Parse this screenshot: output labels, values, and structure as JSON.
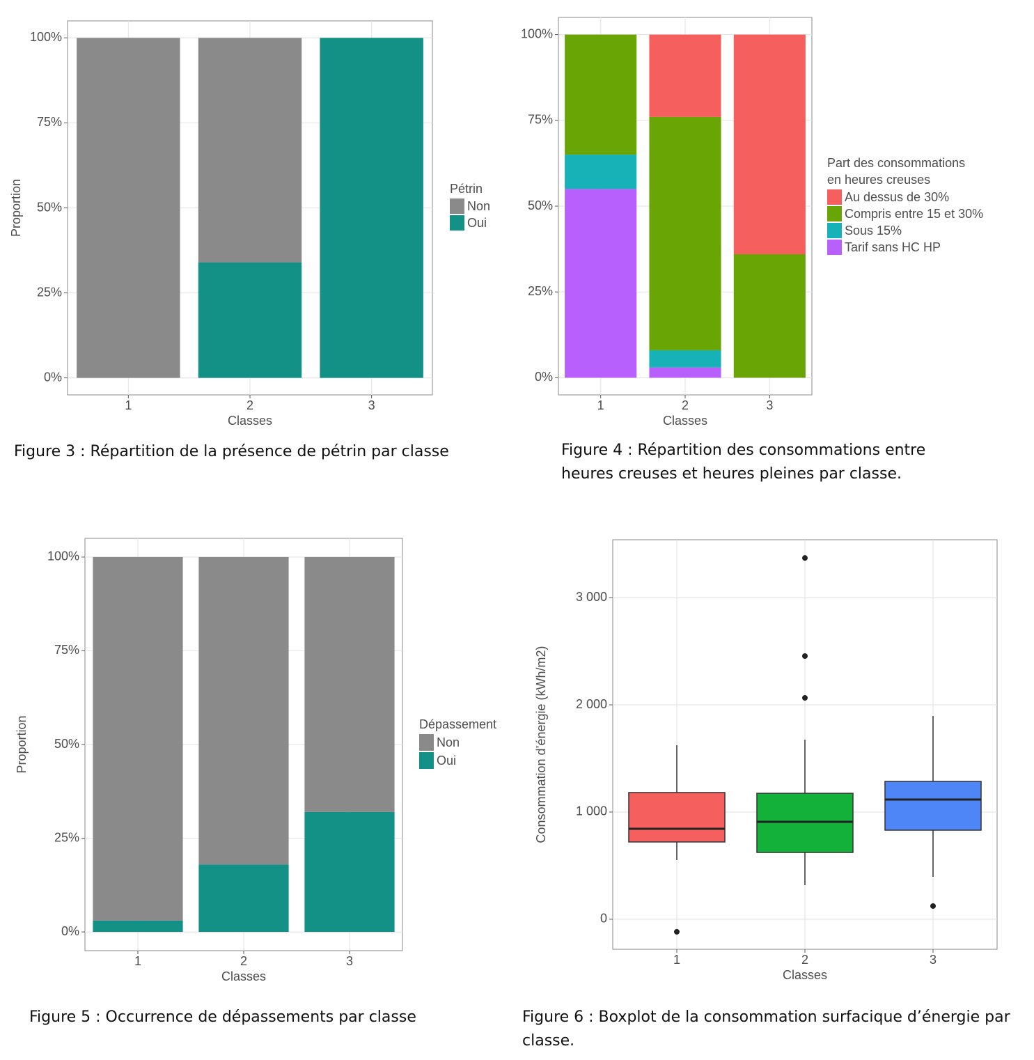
{
  "chart_data": [
    {
      "type": "stacked_bar",
      "caption": "Figure 3 : Répartition de la présence de pétrin par classe",
      "xlabel": "Classes",
      "ylabel": "Proportion",
      "legend_title": "Pétrin",
      "categories": [
        "1",
        "2",
        "3"
      ],
      "series": [
        {
          "name": "Non",
          "color": "#8a8a8a",
          "values": [
            100,
            66,
            0
          ]
        },
        {
          "name": "Oui",
          "color": "#139187",
          "values": [
            0,
            34,
            100
          ]
        }
      ],
      "ylim": [
        -5,
        105
      ],
      "yticks": [
        {
          "value": 0,
          "label": "0%"
        },
        {
          "value": 25,
          "label": "25%"
        },
        {
          "value": 50,
          "label": "50%"
        },
        {
          "value": 75,
          "label": "75%"
        },
        {
          "value": 100,
          "label": "100%"
        }
      ],
      "grid": true
    },
    {
      "type": "stacked_bar",
      "caption": "Figure 4 : Répartition des consommations entre heures creuses et heures pleines par classe.",
      "xlabel": "Classes",
      "legend_title": [
        "Part des consommations",
        " en heures creuses"
      ],
      "categories": [
        "1",
        "2",
        "3"
      ],
      "series": [
        {
          "name": "Au dessus de 30%",
          "color": "#f5605e",
          "values": [
            0,
            24,
            64
          ]
        },
        {
          "name": "Compris entre 15 et 30%",
          "color": "#69a504",
          "values": [
            35,
            68,
            36
          ]
        },
        {
          "name": "Sous 15%",
          "color": "#16b2b8",
          "values": [
            10,
            5,
            0
          ]
        },
        {
          "name": "Tarif sans HC HP",
          "color": "#b760fd",
          "values": [
            55,
            3,
            0
          ]
        }
      ],
      "ylim": [
        -5,
        105
      ],
      "yticks": [
        {
          "value": 0,
          "label": "0%"
        },
        {
          "value": 25,
          "label": "25%"
        },
        {
          "value": 50,
          "label": "50%"
        },
        {
          "value": 75,
          "label": "75%"
        },
        {
          "value": 100,
          "label": "100%"
        }
      ],
      "grid": true
    },
    {
      "type": "stacked_bar",
      "caption": "Figure 5 : Occurrence de dépassements par classe",
      "xlabel": "Classes",
      "ylabel": "Proportion",
      "legend_title": "Dépassement",
      "categories": [
        "1",
        "2",
        "3"
      ],
      "series": [
        {
          "name": "Non",
          "color": "#8a8a8a",
          "values": [
            97,
            82,
            68
          ]
        },
        {
          "name": "Oui",
          "color": "#139187",
          "values": [
            3,
            18,
            32
          ]
        }
      ],
      "ylim": [
        -5,
        105
      ],
      "yticks": [
        {
          "value": 0,
          "label": "0%"
        },
        {
          "value": 25,
          "label": "25%"
        },
        {
          "value": 50,
          "label": "50%"
        },
        {
          "value": 75,
          "label": "75%"
        },
        {
          "value": 100,
          "label": "100%"
        }
      ],
      "grid": true
    },
    {
      "type": "box",
      "caption": "Figure 6 : Boxplot de la consommation surfacique d’énergie par classe.",
      "xlabel": "Classes",
      "ylabel": "Consommation d’énergie (kWh/m2)",
      "categories": [
        "1",
        "2",
        "3"
      ],
      "boxes": [
        {
          "color": "#f5605e",
          "min": 552,
          "q1": 721,
          "median": 844,
          "q3": 1182,
          "max": 1623,
          "outliers": [
            -117
          ]
        },
        {
          "color": "#13b13a",
          "min": 318,
          "q1": 623,
          "median": 909,
          "q3": 1175,
          "max": 1675,
          "outliers": [
            3370,
            2455,
            2065
          ]
        },
        {
          "color": "#4f86f7",
          "min": 396,
          "q1": 831,
          "median": 1117,
          "q3": 1286,
          "max": 1896,
          "outliers": [
            123
          ]
        }
      ],
      "ylim": [
        -280,
        3540
      ],
      "yticks": [
        0,
        {
          "value": 1000,
          "label": "1 000"
        },
        {
          "value": 2000,
          "label": "2 000"
        },
        {
          "value": 3000,
          "label": "3 000"
        }
      ],
      "grid": true
    }
  ]
}
